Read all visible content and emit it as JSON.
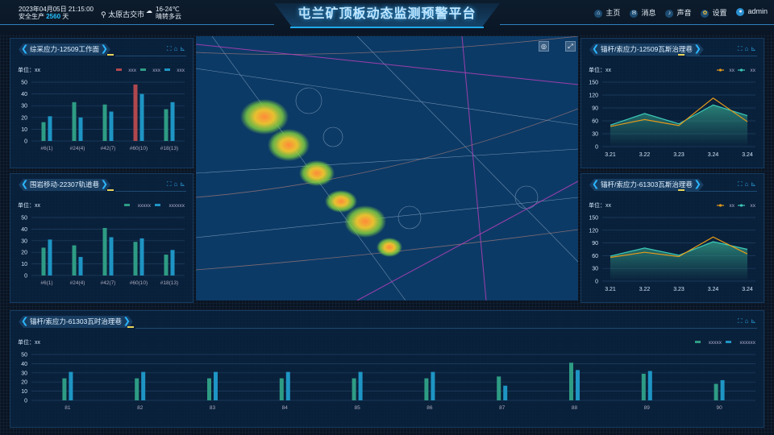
{
  "header": {
    "date": "2023年04月05日",
    "time": "21:15:00",
    "safe_label": "安全生产",
    "safe_days": "2560",
    "days_unit": "天",
    "location": "太原古交市",
    "temp": "16-24℃",
    "weather": "晴转多云",
    "title": "屯兰矿顶板动态监测预警平台",
    "nav": [
      {
        "icon": "home-icon",
        "label": "主页"
      },
      {
        "icon": "message-icon",
        "label": "消息"
      },
      {
        "icon": "sound-icon",
        "label": "声音"
      },
      {
        "icon": "gear-icon",
        "label": "设置"
      },
      {
        "icon": "user-icon",
        "label": "admin"
      }
    ]
  },
  "unit_label": "单位：xx",
  "colors": {
    "green": "#2e9c84",
    "blue": "#1e95c4",
    "red": "#b0484e",
    "orange": "#e39a1a",
    "teal": "#3ccbb8"
  },
  "chart_data": [
    {
      "id": "p1",
      "type": "bar",
      "title": "综采应力-12509工作面",
      "ylabel": "单位：xx",
      "ylim": [
        0,
        50
      ],
      "yticks": [
        0,
        10,
        20,
        30,
        40,
        50
      ],
      "categories": [
        "#6(1)",
        "#24(4)",
        "#42(7)",
        "#60(10)",
        "#18(13)"
      ],
      "series": [
        {
          "name": "xxx",
          "color": "#b0484e",
          "values": [
            null,
            null,
            null,
            48,
            null
          ]
        },
        {
          "name": "xxx",
          "color": "#2e9c84",
          "values": [
            16,
            33,
            31,
            null,
            27
          ]
        },
        {
          "name": "xxx",
          "color": "#1e95c4",
          "values": [
            21,
            20,
            25,
            40,
            33
          ]
        }
      ]
    },
    {
      "id": "p2",
      "type": "bar",
      "title": "围岩移动-22307轨道巷",
      "ylabel": "单位：xx",
      "ylim": [
        0,
        50
      ],
      "yticks": [
        0,
        10,
        20,
        30,
        40,
        50
      ],
      "categories": [
        "#6(1)",
        "#24(4)",
        "#42(7)",
        "#60(10)",
        "#18(13)"
      ],
      "series": [
        {
          "name": "xxxxx",
          "color": "#2e9c84",
          "values": [
            24,
            26,
            41,
            29,
            18
          ]
        },
        {
          "name": "xxxxxx",
          "color": "#1e95c4",
          "values": [
            31,
            16,
            33,
            32,
            22
          ]
        }
      ]
    },
    {
      "id": "p3",
      "type": "line",
      "title": "锚杆/索应力-12509瓦斯治理巷",
      "ylabel": "单位：xx",
      "ylim": [
        0,
        150
      ],
      "yticks": [
        0,
        30,
        60,
        90,
        120,
        150
      ],
      "categories": [
        "3.21",
        "3.22",
        "3.23",
        "3.24",
        "3.24"
      ],
      "series": [
        {
          "name": "xx",
          "color": "#e39a1a",
          "values": [
            47,
            63,
            49,
            113,
            58
          ]
        },
        {
          "name": "xx",
          "color": "#3ccbb8",
          "values": [
            50,
            77,
            53,
            97,
            72
          ]
        }
      ]
    },
    {
      "id": "p4",
      "type": "line",
      "title": "锚杆/索应力-61303瓦斯治理巷",
      "ylabel": "单位：xx",
      "ylim": [
        0,
        150
      ],
      "yticks": [
        0,
        30,
        60,
        90,
        120,
        150
      ],
      "categories": [
        "3.21",
        "3.22",
        "3.23",
        "3.24",
        "3.24"
      ],
      "series": [
        {
          "name": "xx",
          "color": "#e39a1a",
          "values": [
            56,
            68,
            58,
            104,
            64
          ]
        },
        {
          "name": "xx",
          "color": "#3ccbb8",
          "values": [
            59,
            78,
            61,
            93,
            75
          ]
        }
      ]
    },
    {
      "id": "p5",
      "type": "bar",
      "title": "锚杆/索应力-61303瓦时治理巷",
      "ylabel": "单位：xx",
      "ylim": [
        0,
        50
      ],
      "yticks": [
        0,
        10,
        20,
        30,
        40,
        50
      ],
      "categories": [
        "81",
        "82",
        "83",
        "84",
        "85",
        "86",
        "87",
        "88",
        "89",
        "90"
      ],
      "series": [
        {
          "name": "xxxxx",
          "color": "#2e9c84",
          "values": [
            24,
            24,
            24,
            24,
            24,
            24,
            26,
            41,
            29,
            18
          ]
        },
        {
          "name": "xxxxxx",
          "color": "#1e95c4",
          "values": [
            31,
            31,
            31,
            31,
            31,
            31,
            16,
            33,
            32,
            22
          ]
        }
      ]
    }
  ]
}
